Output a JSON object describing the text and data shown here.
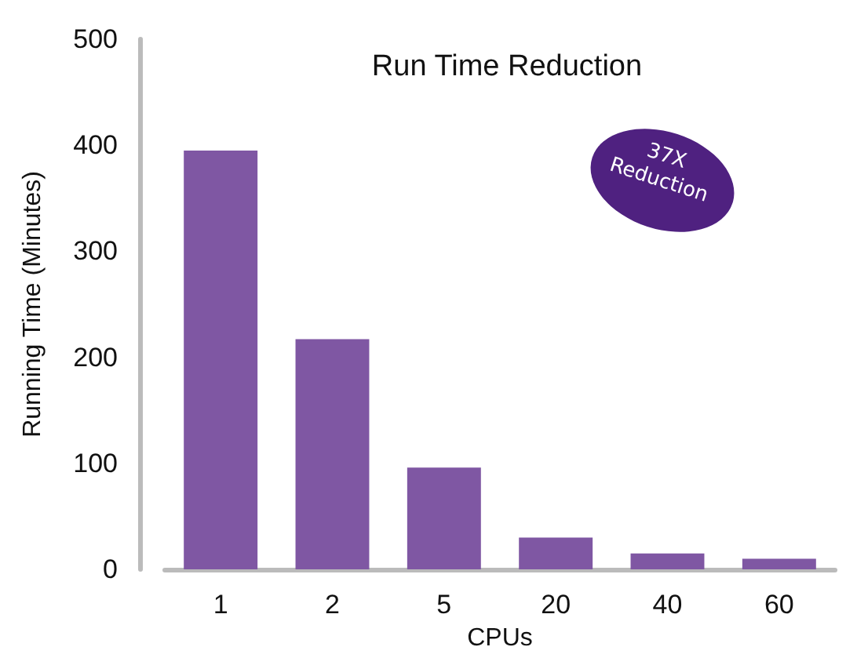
{
  "chart_data": {
    "type": "bar",
    "title": "Run Time Reduction",
    "xlabel": "CPUs",
    "ylabel": "Running Time (Minutes)",
    "categories": [
      "1",
      "2",
      "5",
      "20",
      "40",
      "60"
    ],
    "values": [
      395,
      217,
      96,
      30,
      15,
      10
    ],
    "color": "#7f57a3",
    "ylim": [
      0,
      500
    ],
    "yticks": [
      0,
      100,
      200,
      300,
      400,
      500
    ],
    "annotations": [
      "37X Reduction"
    ]
  }
}
